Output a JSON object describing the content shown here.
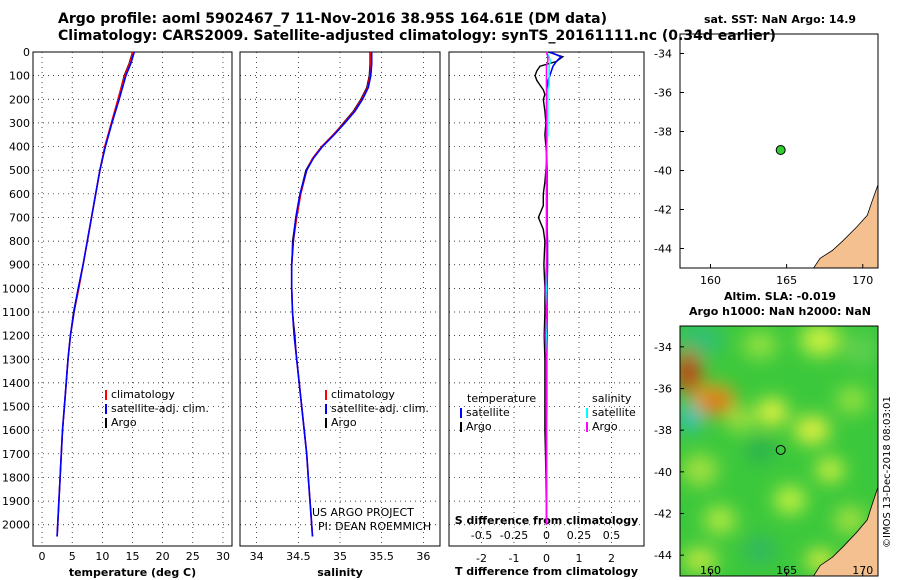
{
  "title_line1": "Argo profile: aoml 5902467_7 11-Nov-2016 38.95S 164.61E (DM data)",
  "title_line2": "Climatology: CARS2009. Satellite-adjusted climatology: synTS_20161111.nc (0.34d earlier)",
  "sst_title": "sat. SST: NaN Argo: 14.9",
  "alt_title1": "Altim. SLA: -0.019",
  "alt_title2": "Argo h1000: NaN h2000: NaN",
  "credit": "©IMOS 13-Dec-2018 08:03:01",
  "project_line1": "US ARGO PROJECT",
  "project_line2": "PI: DEAN ROEMMICH",
  "colors": {
    "climatology": "#ff0000",
    "satellite": "#0000ff",
    "argo": "#000000",
    "temp_satellite": "#0000ff",
    "sal_satellite": "#00ffff",
    "sal_argo": "#ff00ff",
    "land": "#f5c090",
    "float_marker": "#33cc33"
  },
  "chart_data": [
    {
      "type": "line",
      "name": "temperature-profile",
      "xlabel": "temperature (deg C)",
      "ylabel": "",
      "xlim": [
        -1.5,
        31.5
      ],
      "ylim": [
        2090,
        0
      ],
      "xticks": [
        0,
        5,
        10,
        15,
        20,
        25,
        30
      ],
      "yticks": [
        0,
        100,
        200,
        300,
        400,
        500,
        600,
        700,
        800,
        900,
        1000,
        1100,
        1200,
        1300,
        1400,
        1500,
        1600,
        1700,
        1800,
        1900,
        2000
      ],
      "legend": [
        "climatology",
        "satellite-adj. clim.",
        "Argo"
      ],
      "depth": [
        0,
        50,
        100,
        200,
        300,
        400,
        500,
        600,
        700,
        800,
        900,
        1000,
        1100,
        1200,
        1300,
        1400,
        1500,
        1600,
        1700,
        1800,
        1900,
        2000,
        2050
      ],
      "series": [
        {
          "name": "climatology",
          "values": [
            15.1,
            14.5,
            13.7,
            12.6,
            11.5,
            10.4,
            9.6,
            8.9,
            8.2,
            7.5,
            6.8,
            6.1,
            5.3,
            4.7,
            4.3,
            4.0,
            3.7,
            3.4,
            3.2,
            3.0,
            2.8,
            2.6,
            2.5
          ]
        },
        {
          "name": "satellite-adj. clim.",
          "values": [
            15.3,
            14.7,
            13.9,
            12.8,
            11.6,
            10.5,
            9.6,
            8.9,
            8.2,
            7.5,
            6.8,
            6.0,
            5.3,
            4.7,
            4.3,
            4.0,
            3.7,
            3.4,
            3.2,
            3.0,
            2.8,
            2.6,
            2.5
          ]
        },
        {
          "name": "Argo",
          "values": [
            15.0,
            14.4,
            13.6,
            12.6,
            11.5,
            10.5,
            9.6,
            8.9,
            8.2,
            7.5,
            6.8,
            6.0,
            5.2,
            4.7,
            4.3,
            4.0,
            3.7,
            3.4,
            3.2,
            3.0,
            2.8,
            2.6,
            2.5
          ]
        }
      ]
    },
    {
      "type": "line",
      "name": "salinity-profile",
      "xlabel": "salinity",
      "xlim": [
        33.8,
        36.2
      ],
      "ylim": [
        2090,
        0
      ],
      "xticks": [
        34,
        34.5,
        35,
        35.5,
        36
      ],
      "legend": [
        "climatology",
        "satellite-adj. clim.",
        "Argo"
      ],
      "depth": [
        0,
        50,
        100,
        150,
        200,
        250,
        300,
        350,
        400,
        450,
        500,
        600,
        700,
        800,
        900,
        1000,
        1100,
        1200,
        1300,
        1400,
        1500,
        1600,
        1700,
        1800,
        1900,
        2000,
        2050
      ],
      "series": [
        {
          "name": "climatology",
          "values": [
            35.37,
            35.37,
            35.36,
            35.33,
            35.26,
            35.17,
            35.05,
            34.92,
            34.78,
            34.67,
            34.6,
            34.53,
            34.48,
            34.44,
            34.42,
            34.42,
            34.43,
            34.45,
            34.48,
            34.51,
            34.54,
            34.57,
            34.6,
            34.62,
            34.64,
            34.66,
            34.67
          ]
        },
        {
          "name": "satellite-adj. clim.",
          "values": [
            35.38,
            35.38,
            35.37,
            35.34,
            35.27,
            35.18,
            35.06,
            34.93,
            34.79,
            34.68,
            34.6,
            34.52,
            34.47,
            34.44,
            34.42,
            34.42,
            34.43,
            34.45,
            34.48,
            34.51,
            34.54,
            34.57,
            34.6,
            34.62,
            34.64,
            34.66,
            34.67
          ]
        },
        {
          "name": "Argo",
          "values": [
            35.36,
            35.36,
            35.35,
            35.32,
            35.25,
            35.16,
            35.04,
            34.92,
            34.78,
            34.67,
            34.59,
            34.52,
            34.47,
            34.43,
            34.42,
            34.42,
            34.43,
            34.46,
            34.48,
            34.51,
            34.54,
            34.57,
            34.6,
            34.62,
            34.64,
            34.66,
            34.67
          ]
        }
      ]
    },
    {
      "type": "line",
      "name": "difference-profile",
      "xlabel": "T difference from climatology",
      "xlabel2": "S difference from climatology",
      "xlim": [
        -3,
        3
      ],
      "ylim": [
        2090,
        0
      ],
      "xticks": [
        -2,
        -1,
        0,
        1,
        2
      ],
      "xticks_s": [
        -0.5,
        -0.25,
        0,
        0.25,
        0.5
      ],
      "xticklabels_s": [
        "-0.5",
        "-0.25",
        "0",
        "0.25",
        "0.5"
      ],
      "legend_title_t": "temperature",
      "legend_title_s": "salinity",
      "legend_t": [
        "satellite",
        "Argo"
      ],
      "legend_s": [
        "satellite",
        "Argo"
      ],
      "depth": [
        0,
        20,
        40,
        60,
        80,
        100,
        120,
        140,
        160,
        180,
        200,
        250,
        300,
        350,
        400,
        450,
        500,
        550,
        600,
        650,
        700,
        750,
        800,
        900,
        1000,
        1100,
        1200,
        1300,
        1400,
        1500,
        1600,
        1700,
        1800,
        1900,
        2000
      ],
      "series": [
        {
          "name": "temperature Argo",
          "values": [
            0.05,
            0.5,
            0.3,
            -0.2,
            -0.3,
            -0.35,
            -0.3,
            -0.2,
            -0.1,
            -0.05,
            -0.1,
            -0.05,
            -0.02,
            -0.05,
            -0.02,
            0.0,
            -0.02,
            -0.05,
            -0.1,
            -0.1,
            -0.25,
            -0.1,
            -0.05,
            -0.08,
            -0.05,
            -0.05,
            -0.07,
            -0.05,
            -0.05,
            -0.05,
            -0.05,
            -0.03,
            -0.02,
            -0.01,
            0.0
          ]
        },
        {
          "name": "temperature satellite",
          "values": [
            0.1,
            0.45,
            0.3,
            0.2,
            0.15,
            0.1,
            0.05,
            0.03,
            0.02,
            0.02,
            0.02,
            0.01,
            0.02,
            0.01,
            0.0,
            0.01,
            0.02,
            0.02,
            0.02,
            0.02,
            0.02,
            0.02,
            0.03,
            0.03,
            0.02,
            0.02,
            0.02,
            0.01,
            0.01,
            0.01,
            0.0,
            0.0,
            0.0,
            0.0,
            0.0
          ]
        },
        {
          "name": "salinity satellite",
          "values": [
            0.0,
            0.02,
            0.03,
            0.02,
            0.02,
            0.02,
            0.02,
            0.02,
            0.01,
            0.01,
            0.01,
            0.01,
            0.01,
            0.01,
            0.0,
            0.0,
            0.0,
            0.0,
            0.0,
            0.0,
            0.0,
            0.0,
            0.0,
            0.0,
            0.0,
            0.0,
            0.0,
            0.0,
            0.0,
            0.0,
            0.0,
            0.0,
            0.0,
            0.0,
            0.0
          ]
        },
        {
          "name": "salinity Argo",
          "values": [
            0.0,
            0.01,
            0.01,
            0.0,
            0.0,
            0.0,
            0.0,
            0.0,
            0.0,
            0.0,
            0.0,
            0.0,
            0.0,
            0.0,
            0.0,
            0.0,
            0.0,
            0.0,
            0.0,
            0.0,
            0.0,
            0.0,
            0.0,
            0.0,
            -0.01,
            0.0,
            -0.01,
            0.0,
            0.0,
            0.0,
            0.0,
            0.0,
            0.0,
            0.0,
            0.0
          ]
        }
      ]
    },
    {
      "type": "scatter",
      "name": "sst-map",
      "xlim": [
        158,
        171
      ],
      "ylim": [
        -45,
        -33
      ],
      "xticks": [
        160,
        165,
        170
      ],
      "yticks": [
        -34,
        -36,
        -38,
        -40,
        -42,
        -44
      ],
      "points": [
        {
          "name": "Argo float",
          "lon": 164.61,
          "lat": -38.95
        }
      ]
    },
    {
      "type": "heatmap",
      "name": "altimetry-map",
      "xlim": [
        158,
        171
      ],
      "ylim": [
        -45,
        -33
      ],
      "xticks": [
        160,
        165,
        170
      ],
      "yticks": [
        -34,
        -36,
        -38,
        -40,
        -42,
        -44
      ],
      "points": [
        {
          "name": "Argo float",
          "lon": 164.61,
          "lat": -38.95
        }
      ]
    }
  ]
}
